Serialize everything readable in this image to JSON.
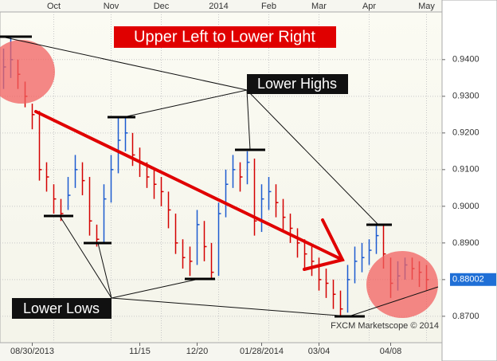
{
  "chart_data": {
    "type": "ohlc",
    "title": "Upper Left to Lower Right",
    "annotations": [
      "Lower Highs",
      "Lower Lows"
    ],
    "source": "FXCM Marketscope © 2014",
    "categories": [
      null,
      null,
      null,
      null,
      "08/30/2013",
      null,
      null,
      null,
      null,
      null,
      null,
      null,
      null,
      null,
      null,
      null,
      null,
      null,
      null,
      "11/15",
      null,
      null,
      null,
      null,
      null,
      null,
      null,
      "12/20",
      null,
      null,
      null,
      null,
      null,
      null,
      null,
      null,
      "01/28/2014",
      null,
      null,
      null,
      null,
      null,
      null,
      null,
      "03/04",
      null,
      null,
      null,
      null,
      null,
      null,
      null,
      null,
      null,
      "04/08",
      null,
      null,
      null,
      null,
      null
    ],
    "top_xticks": [
      {
        "value": 7,
        "label": "Oct"
      },
      {
        "value": 15,
        "label": "Nov"
      },
      {
        "value": 22,
        "label": "Dec"
      },
      {
        "value": 30,
        "label": "2014"
      },
      {
        "value": 37,
        "label": "Feb"
      },
      {
        "value": 44,
        "label": "Mar"
      },
      {
        "value": 51,
        "label": "Apr"
      },
      {
        "value": 59,
        "label": "May"
      }
    ],
    "close": [
      0.938,
      0.94,
      0.936,
      0.93,
      0.925,
      0.91,
      0.908,
      0.902,
      0.898,
      0.903,
      0.91,
      0.907,
      0.896,
      0.891,
      0.902,
      0.91,
      0.918,
      0.92,
      0.914,
      0.912,
      0.908,
      0.906,
      0.904,
      0.899,
      0.89,
      0.886,
      0.885,
      0.895,
      0.889,
      0.882,
      0.898,
      0.906,
      0.91,
      0.908,
      0.912,
      0.896,
      0.902,
      0.904,
      0.901,
      0.897,
      0.894,
      0.89,
      0.887,
      0.885,
      0.88,
      0.879,
      0.876,
      0.872,
      0.88,
      0.885,
      0.886,
      0.888,
      0.892,
      0.887,
      0.879,
      0.881,
      0.884,
      0.883,
      0.882,
      0.88
    ],
    "high": [
      0.943,
      0.946,
      0.94,
      0.934,
      0.928,
      0.926,
      0.912,
      0.906,
      0.902,
      0.908,
      0.914,
      0.912,
      0.908,
      0.895,
      0.906,
      0.914,
      0.924,
      0.924,
      0.92,
      0.916,
      0.912,
      0.91,
      0.908,
      0.904,
      0.898,
      0.891,
      0.889,
      0.899,
      0.896,
      0.89,
      0.901,
      0.91,
      0.914,
      0.912,
      0.915,
      0.913,
      0.906,
      0.908,
      0.906,
      0.902,
      0.898,
      0.894,
      0.891,
      0.889,
      0.886,
      0.883,
      0.88,
      0.877,
      0.884,
      0.889,
      0.89,
      0.891,
      0.895,
      0.895,
      0.886,
      0.885,
      0.886,
      0.886,
      0.885,
      0.884
    ],
    "low": [
      0.932,
      0.935,
      0.932,
      0.927,
      0.921,
      0.907,
      0.904,
      0.898,
      0.896,
      0.899,
      0.905,
      0.903,
      0.892,
      0.889,
      0.89,
      0.901,
      0.909,
      0.915,
      0.911,
      0.908,
      0.905,
      0.902,
      0.9,
      0.894,
      0.887,
      0.883,
      0.881,
      0.884,
      0.885,
      0.88,
      0.881,
      0.897,
      0.905,
      0.904,
      0.906,
      0.892,
      0.893,
      0.899,
      0.897,
      0.893,
      0.89,
      0.886,
      0.883,
      0.881,
      0.877,
      0.875,
      0.872,
      0.87,
      0.871,
      0.879,
      0.882,
      0.884,
      0.887,
      0.883,
      0.875,
      0.877,
      0.88,
      0.88,
      0.878,
      0.877
    ],
    "up_color": "#1c5bd0",
    "down_color": "#d40000",
    "last_price": 0.88002,
    "ylim": [
      0.8628,
      0.953
    ],
    "yticks": [
      {
        "value": 0.87,
        "label": "0.8700"
      },
      {
        "value": 0.88,
        "label": "0.8800"
      },
      {
        "value": 0.89,
        "label": "0.8900"
      },
      {
        "value": 0.9,
        "label": "0.9000"
      },
      {
        "value": 0.91,
        "label": "0.9100"
      },
      {
        "value": 0.92,
        "label": "0.9200"
      },
      {
        "value": 0.93,
        "label": "0.9300"
      },
      {
        "value": 0.94,
        "label": "0.9400"
      }
    ],
    "grid": true
  }
}
